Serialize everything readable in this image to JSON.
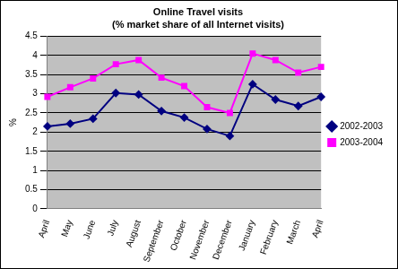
{
  "chart_data": {
    "type": "line",
    "title": "Online Travel visits",
    "subtitle": "(% market share of all Internet visits)",
    "y_label": "%",
    "categories": [
      "April",
      "May",
      "June",
      "July",
      "August",
      "September",
      "October",
      "November",
      "December",
      "January",
      "February",
      "March",
      "April"
    ],
    "series": [
      {
        "name": "2002-2003",
        "color": "#000080",
        "marker": "diamond",
        "values": [
          2.15,
          2.22,
          2.35,
          3.02,
          2.98,
          2.55,
          2.38,
          2.08,
          1.9,
          3.25,
          2.85,
          2.68,
          2.92
        ]
      },
      {
        "name": "2003-2004",
        "color": "#ff00ff",
        "marker": "square",
        "values": [
          2.92,
          3.17,
          3.4,
          3.77,
          3.88,
          3.42,
          3.2,
          2.65,
          2.5,
          4.05,
          3.88,
          3.55,
          3.7
        ]
      }
    ],
    "ylim": [
      0,
      4.5
    ],
    "yticks": [
      0,
      0.5,
      1,
      1.5,
      2,
      2.5,
      3,
      3.5,
      4,
      4.5
    ],
    "grid": true,
    "legend": "right"
  }
}
